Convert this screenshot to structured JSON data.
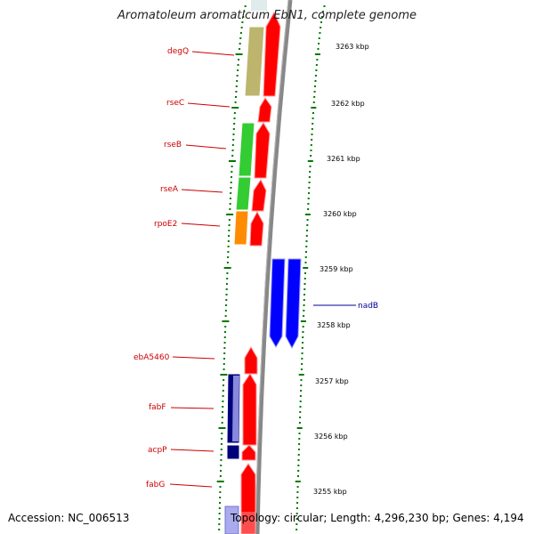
{
  "title": "Aromatoleum aromaticum EbN1, complete genome",
  "footer": {
    "accession": "Accession: NC_006513",
    "info": "Topology: circular; Length: 4,296,230 bp; Genes: 4,194"
  },
  "colors": {
    "plus_gene": "#ff0000",
    "minus_gene": "#0000ff",
    "backbone": "#888888",
    "tick": "#007700",
    "label_plus": "#cc0000",
    "label_minus": "#000099",
    "cog_olive": "#bdb56e",
    "cog_green": "#33cc33",
    "cog_orange": "#ff8c00",
    "cog_navy": "#00007a",
    "cog_lavender": "#aaaaee"
  },
  "kbp_labels": [
    "3263 kbp",
    "3262 kbp",
    "3261 kbp",
    "3260 kbp",
    "3259 kbp",
    "3258 kbp",
    "3257 kbp",
    "3256 kbp",
    "3255 kbp"
  ],
  "gene_labels": [
    "degQ",
    "rseC",
    "rseB",
    "rseA",
    "rpoE2",
    "nadB",
    "ebA5460",
    "fabF",
    "acpP",
    "fabG"
  ]
}
